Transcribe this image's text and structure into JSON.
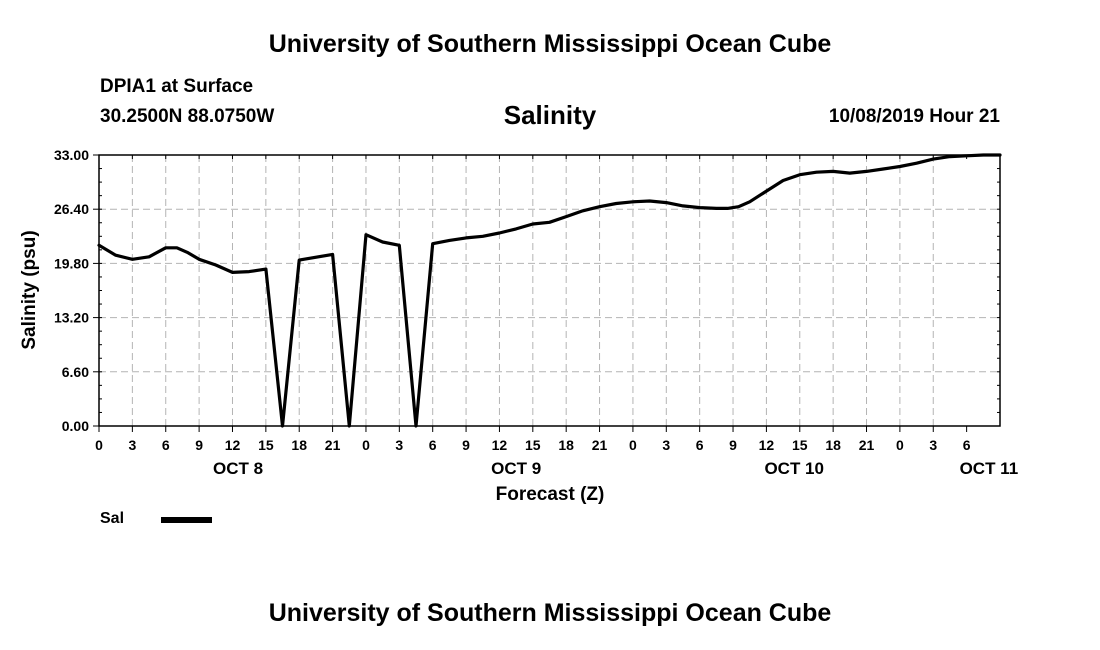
{
  "header": {
    "org_title": "University of Southern Mississippi Ocean Cube",
    "station": "DPIA1 at Surface",
    "coordinates": "30.2500N 88.0750W",
    "run_time": "10/08/2019 Hour 21"
  },
  "footer": {
    "org_title": "University of Southern Mississippi Ocean Cube"
  },
  "legend": {
    "label": "Sal"
  },
  "chart_data": {
    "type": "line",
    "title": "Salinity",
    "xlabel": "Forecast (Z)",
    "ylabel": "Salinity (psu)",
    "ylim": [
      0,
      33
    ],
    "xlim": [
      0,
      81
    ],
    "yticks": [
      "0.00",
      "6.60",
      "13.20",
      "19.80",
      "26.40",
      "33.00"
    ],
    "xtick_labels": [
      "0",
      "3",
      "6",
      "9",
      "12",
      "15",
      "18",
      "21",
      "0",
      "3",
      "6",
      "9",
      "12",
      "15",
      "18",
      "21",
      "0",
      "3",
      "6",
      "9",
      "12",
      "15",
      "18",
      "21",
      "0",
      "3",
      "6"
    ],
    "date_labels": [
      {
        "label": "OCT 8",
        "hour": 12.5
      },
      {
        "label": "OCT 9",
        "hour": 37.5
      },
      {
        "label": "OCT 10",
        "hour": 62.5
      },
      {
        "label": "OCT 11",
        "hour": 80
      }
    ],
    "grid": true,
    "legend_position": "bottom-left",
    "series": [
      {
        "name": "Sal",
        "color": "#000000",
        "x": [
          0,
          1.5,
          3,
          4.5,
          6,
          7,
          8,
          9,
          10.5,
          12,
          13.5,
          15,
          16.5,
          18,
          21,
          22.5,
          24,
          25.5,
          27,
          28.5,
          30,
          31.5,
          33,
          34.5,
          36,
          37.5,
          39,
          40.5,
          42,
          43.5,
          45,
          46.5,
          48,
          49.5,
          51,
          52.5,
          54,
          55.5,
          56.5,
          57.5,
          58.5,
          60,
          61.5,
          63,
          64.5,
          66,
          67.5,
          69,
          70.5,
          72,
          73.5,
          75,
          76.5,
          78,
          79.5,
          81
        ],
        "y": [
          22.0,
          20.8,
          20.3,
          20.6,
          21.7,
          21.7,
          21.1,
          20.3,
          19.6,
          18.7,
          18.8,
          19.1,
          0.0,
          20.2,
          20.9,
          0.0,
          23.3,
          22.4,
          22.0,
          0.0,
          22.2,
          22.6,
          22.9,
          23.1,
          23.5,
          24.0,
          24.6,
          24.8,
          25.5,
          26.2,
          26.7,
          27.1,
          27.3,
          27.4,
          27.2,
          26.8,
          26.6,
          26.5,
          26.5,
          26.7,
          27.3,
          28.6,
          29.9,
          30.6,
          30.9,
          31.0,
          30.8,
          31.0,
          31.3,
          31.6,
          32.0,
          32.5,
          32.8,
          32.9,
          33.0,
          33.0
        ]
      }
    ]
  }
}
